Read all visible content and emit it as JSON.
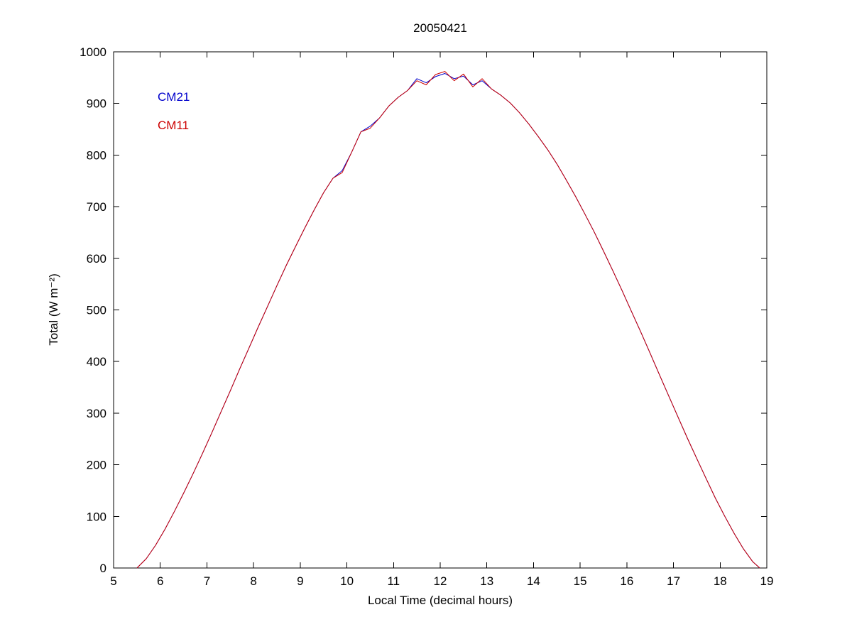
{
  "figure": {
    "background": "#ffffff"
  },
  "chart_data": {
    "type": "line",
    "title": "20050421",
    "xlabel": "Local Time (decimal hours)",
    "ylabel": "Total (W m⁻²)",
    "xlim": [
      5,
      19
    ],
    "ylim": [
      0,
      1000
    ],
    "xticks": [
      5,
      6,
      7,
      8,
      9,
      10,
      11,
      12,
      13,
      14,
      15,
      16,
      17,
      18,
      19
    ],
    "yticks": [
      0,
      100,
      200,
      300,
      400,
      500,
      600,
      700,
      800,
      900,
      1000
    ],
    "grid": false,
    "legend": {
      "position": "top-left-inside",
      "entries": [
        "CM21",
        "CM11"
      ]
    },
    "x": [
      5.5,
      5.7,
      5.9,
      6.1,
      6.3,
      6.5,
      6.7,
      6.9,
      7.1,
      7.3,
      7.5,
      7.7,
      7.9,
      8.1,
      8.3,
      8.5,
      8.7,
      8.9,
      9.1,
      9.3,
      9.5,
      9.7,
      9.9,
      10.1,
      10.3,
      10.5,
      10.7,
      10.9,
      11.1,
      11.3,
      11.5,
      11.7,
      11.9,
      12.1,
      12.3,
      12.5,
      12.7,
      12.9,
      13.1,
      13.3,
      13.5,
      13.7,
      13.9,
      14.1,
      14.3,
      14.5,
      14.7,
      14.9,
      15.1,
      15.3,
      15.5,
      15.7,
      15.9,
      16.1,
      16.3,
      16.5,
      16.7,
      16.9,
      17.1,
      17.3,
      17.5,
      17.7,
      17.9,
      18.1,
      18.3,
      18.5,
      18.7,
      18.85
    ],
    "series": [
      {
        "name": "CM21",
        "color": "#0000cc",
        "values": [
          0,
          18,
          44,
          75,
          109,
          145,
          182,
          221,
          261,
          302,
          343,
          385,
          426,
          467,
          507,
          547,
          586,
          623,
          659,
          694,
          727,
          755,
          770,
          805,
          845,
          856,
          872,
          895,
          912,
          925,
          948,
          940,
          952,
          958,
          948,
          953,
          936,
          944,
          928,
          916,
          901,
          882,
          860,
          836,
          811,
          783,
          752,
          720,
          686,
          651,
          614,
          576,
          537,
          497,
          457,
          416,
          374,
          333,
          292,
          251,
          212,
          173,
          135,
          100,
          67,
          37,
          12,
          0
        ]
      },
      {
        "name": "CM11",
        "color": "#cc0000",
        "values": [
          0,
          18,
          44,
          75,
          109,
          145,
          182,
          221,
          261,
          302,
          343,
          385,
          426,
          467,
          507,
          547,
          586,
          623,
          659,
          694,
          727,
          755,
          766,
          805,
          845,
          852,
          872,
          895,
          912,
          925,
          944,
          936,
          956,
          962,
          944,
          957,
          932,
          948,
          928,
          916,
          901,
          882,
          860,
          836,
          811,
          783,
          752,
          720,
          686,
          651,
          614,
          576,
          537,
          497,
          457,
          416,
          374,
          333,
          292,
          251,
          212,
          173,
          135,
          100,
          67,
          37,
          12,
          0
        ]
      }
    ]
  }
}
